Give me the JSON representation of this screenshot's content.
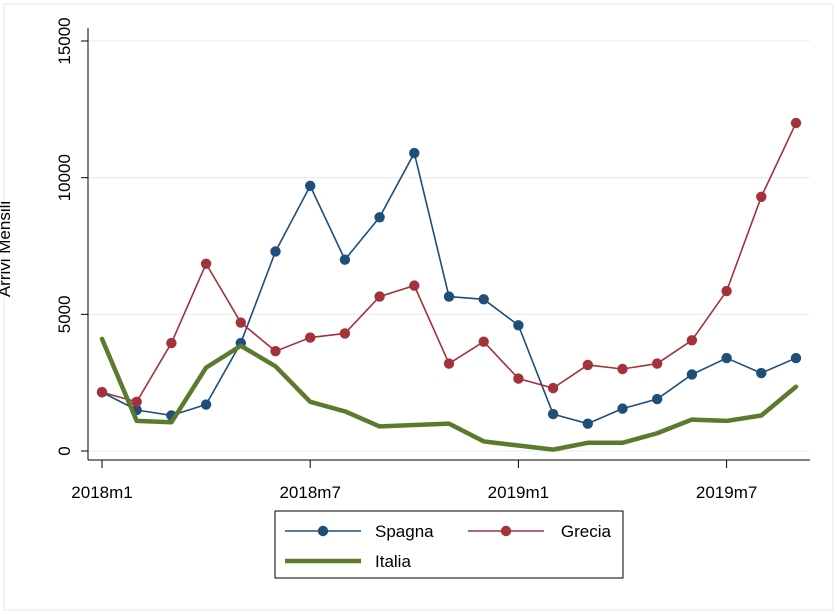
{
  "chart_data": {
    "type": "line",
    "title": "",
    "xlabel": "",
    "ylabel": "Arrivi Mensili",
    "ylim": [
      0,
      15000
    ],
    "yticks": [
      0,
      5000,
      10000,
      15000
    ],
    "xticks": [
      {
        "label": "2018m1",
        "index": 0
      },
      {
        "label": "2018m7",
        "index": 6
      },
      {
        "label": "2019m1",
        "index": 12
      },
      {
        "label": "2019m7",
        "index": 18
      }
    ],
    "grid": true,
    "legend_position": "bottom",
    "x": [
      "2018m1",
      "2018m2",
      "2018m3",
      "2018m4",
      "2018m5",
      "2018m6",
      "2018m7",
      "2018m8",
      "2018m9",
      "2018m10",
      "2018m11",
      "2018m12",
      "2019m1",
      "2019m2",
      "2019m3",
      "2019m4",
      "2019m5",
      "2019m6",
      "2019m7",
      "2019m8",
      "2019m9"
    ],
    "series": [
      {
        "name": "Spagna",
        "color": "#1f4e79",
        "marker": "circle",
        "values": [
          2150,
          1500,
          1300,
          1700,
          3950,
          7300,
          9700,
          7000,
          8550,
          10900,
          5650,
          5550,
          4600,
          1350,
          1000,
          1550,
          1900,
          2800,
          3400,
          2850,
          3400
        ]
      },
      {
        "name": "Grecia",
        "color": "#a3323a",
        "marker": "circle",
        "values": [
          2150,
          1800,
          3950,
          6850,
          4700,
          3650,
          4150,
          4300,
          5650,
          6050,
          3200,
          4000,
          2650,
          2300,
          3150,
          3000,
          3200,
          4050,
          5850,
          9300,
          12000
        ]
      },
      {
        "name": "Italia",
        "color": "#5b7a2e",
        "marker": "none",
        "values": [
          4100,
          1100,
          1050,
          3050,
          3850,
          3100,
          1800,
          1450,
          900,
          950,
          1000,
          350,
          200,
          50,
          300,
          300,
          650,
          1150,
          1100,
          1300,
          2350
        ]
      }
    ]
  }
}
